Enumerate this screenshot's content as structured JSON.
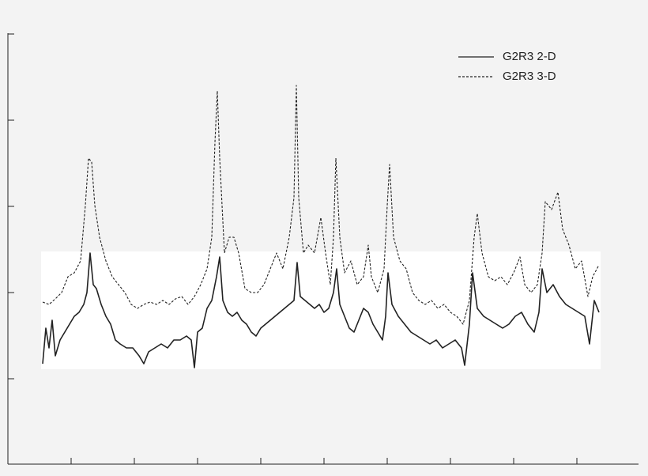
{
  "chart_data": {
    "type": "line",
    "xlim": [
      0,
      798
    ],
    "ylim": [
      0,
      545
    ],
    "xticks": [
      80,
      160,
      240,
      320,
      400,
      480,
      560,
      640,
      720
    ],
    "yticks": [
      108,
      217,
      326,
      435,
      544
    ],
    "legend": "upper right",
    "series": [
      {
        "name": "G2R3 2-D",
        "color": "#222222",
        "style": "solid",
        "x": [
          44,
          48,
          52,
          56,
          60,
          66,
          72,
          78,
          84,
          90,
          96,
          100,
          104,
          108,
          112,
          118,
          124,
          130,
          136,
          142,
          150,
          158,
          166,
          172,
          178,
          186,
          194,
          202,
          210,
          218,
          226,
          232,
          236,
          240,
          246,
          252,
          258,
          264,
          268,
          272,
          278,
          284,
          290,
          296,
          302,
          308,
          314,
          320,
          326,
          332,
          338,
          344,
          350,
          356,
          362,
          366,
          370,
          376,
          382,
          388,
          394,
          400,
          406,
          412,
          416,
          420,
          426,
          432,
          438,
          444,
          450,
          456,
          462,
          468,
          474,
          478,
          481,
          486,
          494,
          502,
          510,
          518,
          526,
          534,
          542,
          550,
          558,
          566,
          574,
          578,
          584,
          588,
          594,
          602,
          610,
          618,
          626,
          634,
          642,
          650,
          658,
          666,
          672,
          676,
          682,
          690,
          698,
          706,
          714,
          722,
          730,
          736,
          742,
          748
        ],
        "values": [
          127,
          172,
          147,
          182,
          137,
          157,
          167,
          177,
          187,
          192,
          202,
          217,
          267,
          227,
          222,
          202,
          187,
          177,
          157,
          152,
          147,
          147,
          137,
          127,
          142,
          147,
          152,
          147,
          157,
          157,
          162,
          157,
          122,
          167,
          172,
          197,
          207,
          237,
          262,
          207,
          192,
          187,
          192,
          182,
          177,
          167,
          162,
          172,
          177,
          182,
          187,
          192,
          197,
          202,
          207,
          255,
          212,
          207,
          202,
          197,
          202,
          192,
          197,
          217,
          247,
          202,
          187,
          172,
          167,
          182,
          197,
          192,
          177,
          167,
          157,
          187,
          242,
          202,
          187,
          177,
          167,
          162,
          157,
          152,
          157,
          147,
          152,
          157,
          147,
          125,
          177,
          242,
          197,
          187,
          182,
          177,
          172,
          177,
          187,
          192,
          177,
          167,
          192,
          247,
          217,
          227,
          212,
          202,
          197,
          192,
          187,
          152,
          207,
          192
        ]
      },
      {
        "name": "G2R3 3-D",
        "color": "#222222",
        "style": "dashed",
        "x": [
          44,
          52,
          60,
          68,
          76,
          84,
          92,
          98,
          102,
          106,
          110,
          116,
          124,
          132,
          140,
          148,
          156,
          164,
          172,
          180,
          188,
          196,
          204,
          212,
          220,
          228,
          236,
          244,
          252,
          258,
          262,
          265,
          268,
          274,
          280,
          286,
          292,
          300,
          308,
          316,
          324,
          332,
          340,
          348,
          356,
          362,
          365,
          368,
          374,
          380,
          388,
          396,
          402,
          408,
          412,
          415,
          420,
          426,
          434,
          442,
          450,
          456,
          460,
          468,
          476,
          480,
          483,
          488,
          496,
          504,
          512,
          520,
          528,
          536,
          544,
          552,
          560,
          568,
          576,
          584,
          590,
          594,
          600,
          608,
          616,
          624,
          632,
          640,
          648,
          654,
          662,
          670,
          676,
          680,
          688,
          696,
          702,
          710,
          718,
          726,
          734,
          740,
          748
        ],
        "values": [
          205,
          202,
          209,
          217,
          237,
          242,
          257,
          327,
          387,
          382,
          327,
          287,
          257,
          237,
          227,
          217,
          202,
          197,
          202,
          205,
          202,
          207,
          202,
          209,
          212,
          202,
          212,
          227,
          247,
          287,
          407,
          472,
          387,
          267,
          287,
          287,
          267,
          222,
          217,
          217,
          227,
          247,
          267,
          247,
          287,
          337,
          479,
          337,
          267,
          277,
          267,
          312,
          267,
          227,
          287,
          387,
          287,
          242,
          257,
          227,
          237,
          277,
          237,
          217,
          247,
          327,
          379,
          287,
          257,
          247,
          217,
          207,
          202,
          207,
          197,
          202,
          192,
          187,
          177,
          207,
          287,
          317,
          267,
          237,
          232,
          237,
          227,
          242,
          262,
          227,
          217,
          227,
          267,
          332,
          322,
          344,
          297,
          277,
          247,
          257,
          212,
          237,
          252
        ]
      }
    ]
  }
}
